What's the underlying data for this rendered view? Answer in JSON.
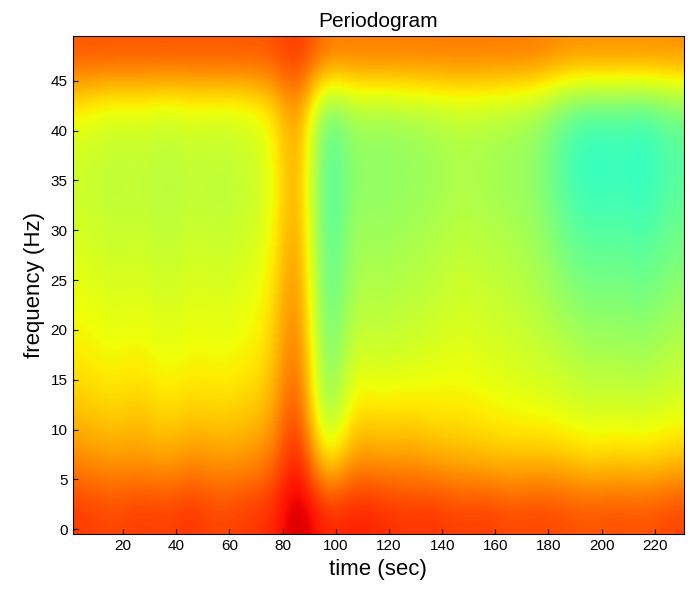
{
  "chart_data": {
    "type": "heatmap",
    "title": "Periodogram",
    "x_label": "time (sec)",
    "y_label": "frequency (Hz)",
    "xlim": [
      1,
      231
    ],
    "ylim": [
      -0.5,
      49.5
    ],
    "xticks": [
      20,
      40,
      60,
      80,
      100,
      120,
      140,
      160,
      180,
      200,
      220
    ],
    "yticks": [
      0,
      5,
      10,
      15,
      20,
      25,
      30,
      35,
      40,
      45
    ],
    "color_range": [
      0,
      10
    ],
    "grid": false,
    "cells": [
      [
        8.5,
        8.3,
        8.5,
        8.4,
        8.6,
        8.3,
        8.5,
        8.6,
        9.5,
        8.6,
        8.8,
        8.7,
        8.5,
        8.6,
        8.4,
        8.5,
        8.3,
        8.4,
        8.3,
        8.2,
        8.3,
        8.2,
        8.4
      ],
      [
        7.6,
        7.4,
        7.5,
        7.3,
        7.6,
        7.4,
        7.5,
        7.7,
        9.2,
        6.2,
        7.6,
        7.4,
        7.5,
        7.3,
        7.2,
        7.1,
        7.0,
        7.1,
        7.0,
        6.8,
        6.9,
        6.8,
        7.0
      ],
      [
        7.0,
        6.8,
        7.0,
        6.7,
        6.9,
        6.8,
        6.9,
        7.1,
        8.8,
        4.8,
        6.8,
        6.6,
        6.7,
        6.6,
        6.6,
        6.5,
        6.4,
        6.3,
        6.2,
        6.0,
        6.1,
        6.0,
        6.2
      ],
      [
        6.6,
        6.4,
        6.6,
        6.3,
        6.5,
        6.4,
        6.5,
        6.8,
        8.4,
        4.6,
        6.2,
        6.0,
        6.1,
        6.2,
        6.3,
        6.2,
        6.1,
        6.0,
        5.8,
        5.6,
        5.6,
        5.5,
        5.8
      ],
      [
        6.4,
        6.2,
        6.3,
        6.1,
        6.3,
        6.2,
        6.3,
        6.6,
        8.2,
        4.3,
        5.8,
        5.7,
        5.8,
        5.9,
        6.1,
        6.0,
        5.9,
        5.7,
        5.4,
        5.1,
        5.2,
        5.0,
        5.4
      ],
      [
        6.2,
        6.0,
        6.1,
        5.9,
        6.1,
        6.0,
        6.1,
        6.4,
        8.0,
        4.2,
        5.6,
        5.5,
        5.6,
        5.7,
        5.9,
        5.8,
        5.7,
        5.5,
        5.0,
        4.7,
        4.8,
        4.6,
        5.0
      ],
      [
        6.0,
        5.8,
        5.9,
        5.7,
        5.9,
        5.8,
        5.9,
        6.2,
        7.8,
        4.1,
        5.4,
        5.3,
        5.4,
        5.5,
        5.7,
        5.6,
        5.5,
        5.3,
        4.6,
        4.3,
        4.4,
        4.2,
        4.7
      ],
      [
        6.0,
        5.8,
        5.9,
        5.7,
        5.9,
        5.8,
        5.9,
        6.2,
        7.8,
        4.1,
        5.3,
        5.2,
        5.3,
        5.4,
        5.6,
        5.5,
        5.4,
        5.2,
        4.4,
        4.0,
        4.2,
        4.0,
        4.5
      ],
      [
        6.4,
        6.1,
        6.2,
        6.0,
        6.2,
        6.1,
        6.2,
        6.5,
        7.9,
        4.6,
        5.6,
        5.5,
        5.6,
        5.7,
        5.9,
        5.8,
        5.7,
        5.5,
        4.8,
        4.5,
        4.6,
        4.4,
        4.9
      ],
      [
        8.2,
        8.2,
        8.2,
        8.2,
        8.2,
        8.2,
        8.2,
        8.2,
        8.6,
        7.8,
        7.8,
        7.8,
        7.8,
        7.8,
        7.8,
        7.8,
        7.8,
        7.8,
        7.6,
        7.6,
        7.6,
        7.6,
        7.6
      ]
    ]
  }
}
